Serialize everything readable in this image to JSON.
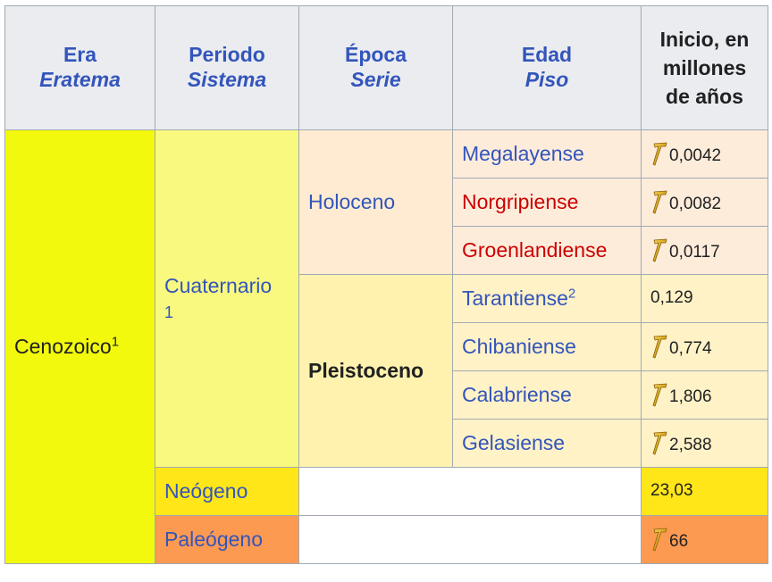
{
  "header": {
    "era": "Era",
    "eratema": "Eratema",
    "periodo": "Periodo",
    "sistema": "Sistema",
    "epoca": "Época",
    "serie": "Serie",
    "edad": "Edad",
    "piso": "Piso",
    "inicio_l1": "Inicio, en",
    "inicio_l2": "millones",
    "inicio_l3": "de años"
  },
  "era": {
    "name": "Cenozoico",
    "note": "1"
  },
  "period_cuaternario": {
    "name": "Cuaternario",
    "note": "1"
  },
  "epoch_holoceno": "Holoceno",
  "epoch_pleistoceno": "Pleistoceno",
  "ages": [
    {
      "name": "Megalayense",
      "start": "0,0042",
      "gssp": true
    },
    {
      "name": "Norgripiense",
      "start": "0,0082",
      "gssp": true
    },
    {
      "name": "Groenlandiense",
      "start": "0,0117",
      "gssp": true
    },
    {
      "name": "Tarantiense",
      "note": "2",
      "start": "0,129",
      "gssp": false
    },
    {
      "name": "Chibaniense",
      "start": "0,774",
      "gssp": true
    },
    {
      "name": "Calabriense",
      "start": "1,806",
      "gssp": true
    },
    {
      "name": "Gelasiense",
      "start": "2,588",
      "gssp": true
    }
  ],
  "neogeno": {
    "name": "Neógeno",
    "start": "23,03"
  },
  "paleogeno": {
    "name": "Paleógeno",
    "start": "66"
  },
  "icons": {
    "gssp": "golden-spike-icon"
  },
  "colors": {
    "link": "#3355bb",
    "redlink": "#cc0000",
    "cenozoico": "#f2f90c",
    "cuaternario": "#f9f97f",
    "holoceno": "#feebd2",
    "pleistoceno": "#fff2ae",
    "neogeno": "#ffe619",
    "paleogeno": "#fd9a52",
    "header": "#eaecf0"
  }
}
